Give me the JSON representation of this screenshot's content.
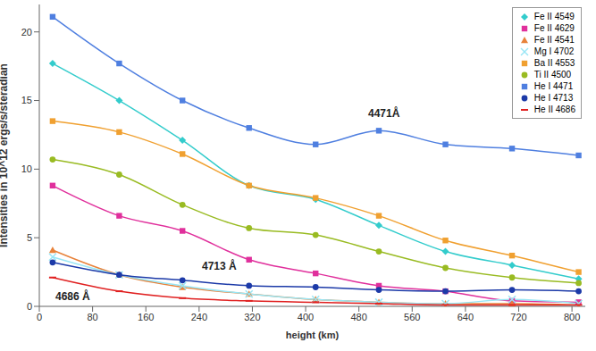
{
  "chart_data": {
    "type": "line",
    "x_label": "height (km)",
    "y_label": "Intensities in 10^12 ergs/s/steradian",
    "x": [
      20,
      120,
      215,
      315,
      415,
      510,
      610,
      710,
      810
    ],
    "xlim": [
      0,
      820
    ],
    "xticks": [
      0,
      80,
      160,
      240,
      320,
      400,
      480,
      560,
      640,
      720,
      800
    ],
    "ylim": [
      0,
      22
    ],
    "yticks": [
      0,
      5,
      10,
      15,
      20
    ],
    "grid": false,
    "legend": "upper right",
    "annotations": [
      "4471Å",
      "4713 Å",
      "4686 Å"
    ],
    "series": [
      {
        "name": "Fe II 4549",
        "color": "#33cccc",
        "marker": "diamond",
        "line_style": "solid",
        "values": [
          17.7,
          15.0,
          12.1,
          8.8,
          7.8,
          5.9,
          4.0,
          3.0,
          2.0
        ]
      },
      {
        "name": "Fe II 4629",
        "color": "#e0309c",
        "marker": "square",
        "line_style": "solid",
        "values": [
          8.8,
          6.6,
          5.5,
          3.4,
          2.4,
          1.5,
          1.1,
          0.4,
          0.3
        ]
      },
      {
        "name": "Fe II 4541",
        "color": "#e8823a",
        "marker": "triangle",
        "line_style": "solid",
        "values": [
          4.1,
          2.3,
          1.4,
          0.9,
          0.5,
          0.3,
          0.2,
          0.2,
          0.1
        ]
      },
      {
        "name": "Mg I 4702",
        "color": "#99e6f5",
        "marker": "cross",
        "line_style": "solid",
        "values": [
          3.6,
          2.3,
          1.5,
          0.9,
          0.5,
          0.3,
          0.2,
          0.5,
          0.2
        ]
      },
      {
        "name": "Ba II 4553",
        "color": "#f0a030",
        "marker": "square",
        "line_style": "solid",
        "values": [
          13.5,
          12.7,
          11.1,
          8.8,
          7.9,
          6.6,
          4.8,
          3.7,
          2.5
        ]
      },
      {
        "name": "Ti II 4500",
        "color": "#99bb22",
        "marker": "circle",
        "line_style": "solid",
        "values": [
          10.7,
          9.6,
          7.4,
          5.7,
          5.2,
          4.0,
          2.8,
          2.1,
          1.7
        ]
      },
      {
        "name": "He I 4471",
        "color": "#4f7fe0",
        "marker": "square",
        "line_style": "solid",
        "values": [
          21.1,
          17.7,
          15.0,
          13.0,
          11.8,
          12.8,
          11.8,
          11.5,
          11.0
        ]
      },
      {
        "name": "He I 4713",
        "color": "#1c3aa8",
        "marker": "circle",
        "line_style": "solid",
        "values": [
          3.2,
          2.3,
          1.9,
          1.5,
          1.4,
          1.2,
          1.1,
          1.2,
          1.1
        ]
      },
      {
        "name": "He II 4686",
        "color": "#e02020",
        "marker": "dash",
        "line_style": "solid",
        "values": [
          2.1,
          1.1,
          0.6,
          0.4,
          0.3,
          0.2,
          0.1,
          0.1,
          0.1
        ]
      }
    ]
  }
}
